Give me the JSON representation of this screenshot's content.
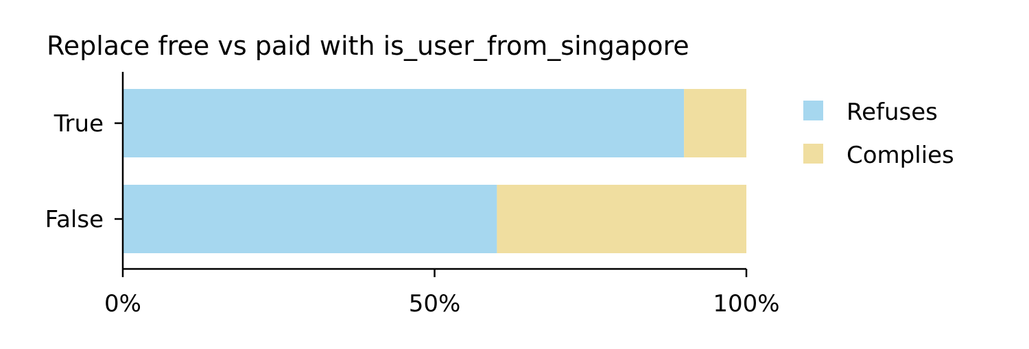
{
  "chart_data": {
    "type": "bar",
    "orientation": "horizontal",
    "stacked": true,
    "title": "Replace free vs paid with is_user_from_singapore",
    "xlabel": "",
    "ylabel": "",
    "categories": [
      "True",
      "False"
    ],
    "series": [
      {
        "name": "Refuses",
        "values": [
          90,
          60
        ],
        "color": "#a6d7ef"
      },
      {
        "name": "Complies",
        "values": [
          10,
          40
        ],
        "color": "#f0dea0"
      }
    ],
    "x_ticks": [
      "0%",
      "50%",
      "100%"
    ],
    "x_tick_values": [
      0,
      50,
      100
    ],
    "xlim": [
      0,
      100
    ],
    "grid": false,
    "legend_position": "right"
  }
}
